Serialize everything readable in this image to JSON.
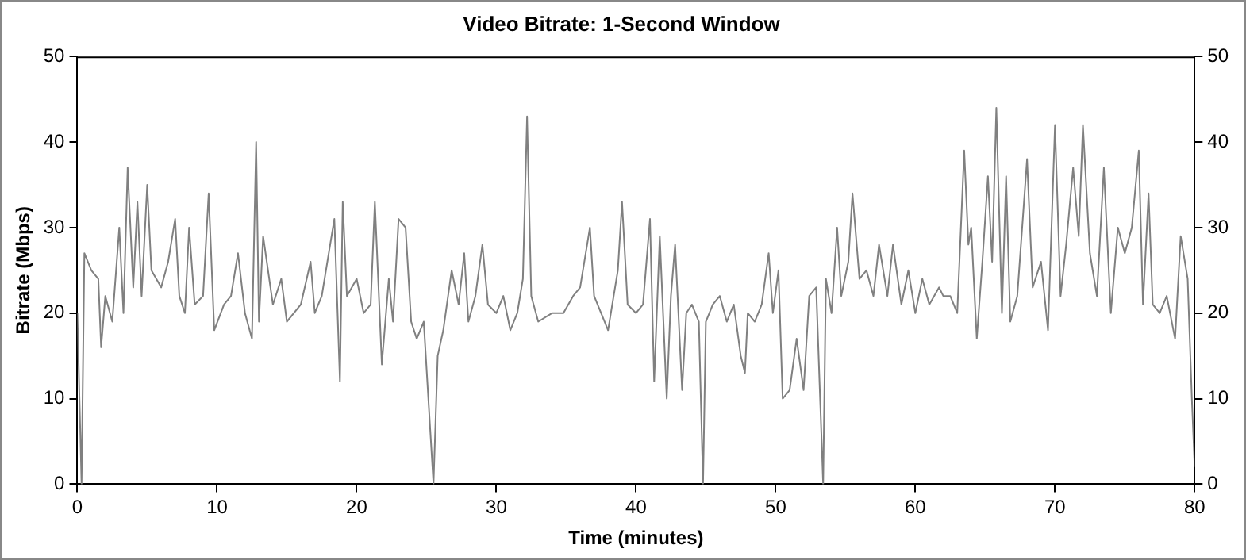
{
  "chart_data": {
    "type": "line",
    "title": "Video Bitrate: 1-Second Window",
    "xlabel": "Time (minutes)",
    "ylabel": "Bitrate (Mbps)",
    "xlim": [
      0,
      80
    ],
    "xticks": [
      0,
      10,
      20,
      30,
      40,
      50,
      60,
      70,
      80
    ],
    "ylim": [
      0,
      50
    ],
    "yticks": [
      0,
      10,
      20,
      30,
      40,
      50
    ],
    "y2lim": [
      0,
      50
    ],
    "y2ticks": [
      0,
      10,
      20,
      30,
      40,
      50
    ],
    "grid": false,
    "legend": false,
    "marker": "none",
    "line_style": "solid",
    "series": [
      {
        "color": "#808080",
        "x": [
          0,
          0.3,
          0.5,
          1,
          1.5,
          1.7,
          2,
          2.5,
          3,
          3.3,
          3.6,
          4,
          4.3,
          4.6,
          5,
          5.3,
          6,
          6.5,
          7,
          7.3,
          7.7,
          8,
          8.4,
          9,
          9.4,
          9.8,
          10.5,
          11,
          11.5,
          12,
          12.5,
          12.8,
          13,
          13.3,
          14,
          14.6,
          15,
          16,
          16.7,
          17,
          17.5,
          18.4,
          18.8,
          19,
          19.3,
          20,
          20.5,
          21,
          21.3,
          21.8,
          22.3,
          22.6,
          23,
          23.5,
          23.9,
          24.3,
          24.8,
          25.5,
          25.8,
          26.2,
          26.8,
          27.3,
          27.7,
          28,
          28.5,
          29,
          29.4,
          30,
          30.5,
          31,
          31.5,
          31.9,
          32.2,
          32.5,
          33,
          34,
          34.8,
          35.5,
          36,
          36.7,
          37,
          38,
          38.7,
          39,
          39.4,
          40,
          40.5,
          41,
          41.3,
          41.7,
          42.2,
          42.5,
          42.8,
          43.3,
          43.6,
          44,
          44.5,
          44.8,
          45,
          45.5,
          46,
          46.5,
          47,
          47.5,
          47.8,
          48,
          48.5,
          49,
          49.5,
          49.8,
          50.2,
          50.5,
          51,
          51.5,
          52,
          52.4,
          52.9,
          53.4,
          53.6,
          54,
          54.4,
          54.7,
          55.2,
          55.5,
          56,
          56.5,
          57,
          57.4,
          58,
          58.4,
          59,
          59.5,
          60,
          60.5,
          61,
          61.7,
          62,
          62.5,
          63,
          63.5,
          63.8,
          64,
          64.4,
          64.8,
          65.2,
          65.5,
          65.8,
          66.2,
          66.5,
          66.8,
          67.3,
          68,
          68.4,
          69,
          69.5,
          70,
          70.4,
          70.8,
          71.3,
          71.7,
          72,
          72.5,
          73,
          73.5,
          74,
          74.5,
          75,
          75.5,
          76,
          76.3,
          76.7,
          77,
          77.5,
          78,
          78.6,
          79,
          79.5,
          79.8,
          80
        ],
        "values": [
          20,
          0,
          27,
          25,
          24,
          16,
          22,
          19,
          30,
          20,
          37,
          23,
          33,
          22,
          35,
          25,
          23,
          26,
          31,
          22,
          20,
          30,
          21,
          22,
          34,
          18,
          21,
          22,
          27,
          20,
          17,
          40,
          19,
          29,
          21,
          24,
          19,
          21,
          26,
          20,
          22,
          31,
          12,
          33,
          22,
          24,
          20,
          21,
          33,
          14,
          24,
          19,
          31,
          30,
          19,
          17,
          19,
          0,
          15,
          18,
          25,
          21,
          27,
          19,
          22,
          28,
          21,
          20,
          22,
          18,
          20,
          24,
          43,
          22,
          19,
          20,
          20,
          22,
          23,
          30,
          22,
          18,
          25,
          33,
          21,
          20,
          21,
          31,
          12,
          29,
          10,
          22,
          28,
          11,
          20,
          21,
          19,
          0,
          19,
          21,
          22,
          19,
          21,
          15,
          13,
          20,
          19,
          21,
          27,
          20,
          25,
          10,
          11,
          17,
          11,
          22,
          23,
          0,
          24,
          20,
          30,
          22,
          26,
          34,
          24,
          25,
          22,
          28,
          22,
          28,
          21,
          25,
          20,
          24,
          21,
          23,
          22,
          22,
          20,
          39,
          28,
          30,
          17,
          26,
          36,
          26,
          44,
          20,
          36,
          19,
          22,
          38,
          23,
          26,
          18,
          42,
          22,
          28,
          37,
          29,
          42,
          27,
          22,
          37,
          20,
          30,
          27,
          30,
          39,
          21,
          34,
          21,
          20,
          22,
          17,
          29,
          24,
          10,
          2
        ]
      }
    ]
  }
}
